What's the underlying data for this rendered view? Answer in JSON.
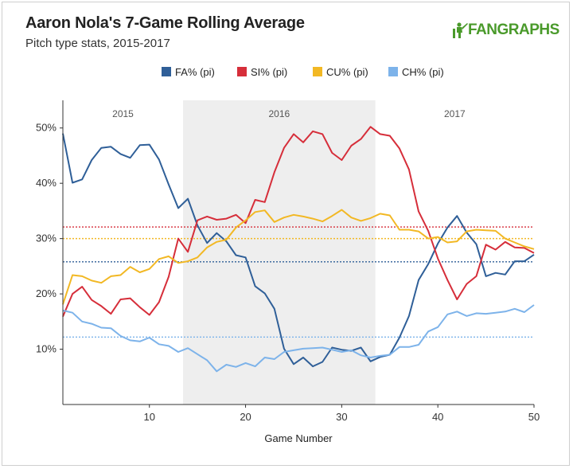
{
  "header": {
    "title": "Aaron Nola's 7-Game Rolling Average",
    "subtitle": "Pitch type stats, 2015-2017",
    "brand": "FANGRAPHS"
  },
  "colors": {
    "FA": "#2f5f98",
    "SI": "#d62e3a",
    "CU": "#f2b824",
    "CH": "#7db3ea",
    "band": "#eeeeee",
    "brand": "#4a9a2b"
  },
  "chart_data": {
    "type": "line",
    "title": "Aaron Nola's 7-Game Rolling Average",
    "subtitle": "Pitch type stats, 2015-2017",
    "xlabel": "Game Number",
    "ylabel": "",
    "xlim": [
      1,
      50
    ],
    "ylim": [
      0,
      55
    ],
    "xticks": [
      10,
      20,
      30,
      40,
      50
    ],
    "yticks": [
      10,
      20,
      30,
      40,
      50
    ],
    "ytick_labels": [
      "10%",
      "20%",
      "30%",
      "40%",
      "50%"
    ],
    "grid": false,
    "legend_position": "top-center",
    "seasons": [
      {
        "label": "2015",
        "start": 1,
        "end": 13.5
      },
      {
        "label": "2016",
        "start": 13.5,
        "end": 33.5
      },
      {
        "label": "2017",
        "start": 33.5,
        "end": 50
      }
    ],
    "averages": [
      {
        "series": "FA% (pi)",
        "value": 25.8
      },
      {
        "series": "SI% (pi)",
        "value": 32.1
      },
      {
        "series": "CU% (pi)",
        "value": 30.0
      },
      {
        "series": "CH% (pi)",
        "value": 12.2
      }
    ],
    "x": [
      1,
      2,
      3,
      4,
      5,
      6,
      7,
      8,
      9,
      10,
      11,
      12,
      13,
      14,
      15,
      16,
      17,
      18,
      19,
      20,
      21,
      22,
      23,
      24,
      25,
      26,
      27,
      28,
      29,
      30,
      31,
      32,
      33,
      34,
      35,
      36,
      37,
      38,
      39,
      40,
      41,
      42,
      43,
      44,
      45,
      46,
      47,
      48,
      49,
      50
    ],
    "series": [
      {
        "name": "FA% (pi)",
        "key": "FA",
        "values": [
          49.0,
          40.1,
          40.7,
          44.2,
          46.4,
          46.6,
          45.3,
          44.6,
          46.9,
          47.0,
          44.3,
          39.8,
          35.5,
          37.2,
          32.4,
          29.2,
          31.0,
          29.5,
          27.0,
          26.6,
          21.4,
          20.1,
          17.3,
          10.1,
          7.3,
          8.5,
          6.9,
          7.7,
          10.3,
          9.9,
          9.7,
          10.3,
          7.8,
          8.6,
          9.0,
          12.1,
          16.0,
          22.5,
          25.4,
          29.1,
          32.0,
          34.1,
          31.1,
          29.0,
          23.2,
          23.8,
          23.5,
          25.9,
          25.9,
          27.1
        ]
      },
      {
        "name": "SI% (pi)",
        "key": "SI",
        "values": [
          15.9,
          20.0,
          21.3,
          18.9,
          17.8,
          16.4,
          19.0,
          19.2,
          17.6,
          16.2,
          18.5,
          23.1,
          30.0,
          27.6,
          33.3,
          34.0,
          33.4,
          33.6,
          34.3,
          32.8,
          37.0,
          36.6,
          42.0,
          46.4,
          48.9,
          47.4,
          49.4,
          48.9,
          45.5,
          44.2,
          46.8,
          48.0,
          50.2,
          48.9,
          48.6,
          46.3,
          42.5,
          34.9,
          31.4,
          26.4,
          22.5,
          19.0,
          21.8,
          23.2,
          28.9,
          28.0,
          29.4,
          28.4,
          28.3,
          27.4
        ]
      },
      {
        "name": "CU% (pi)",
        "key": "CU",
        "values": [
          18.1,
          23.4,
          23.2,
          22.4,
          22.0,
          23.2,
          23.4,
          24.9,
          23.9,
          24.5,
          26.3,
          26.8,
          25.6,
          25.9,
          26.6,
          28.4,
          29.4,
          29.8,
          32.0,
          33.3,
          34.8,
          35.1,
          33.0,
          33.8,
          34.3,
          34.0,
          33.6,
          33.1,
          34.1,
          35.2,
          33.8,
          33.2,
          33.7,
          34.5,
          34.2,
          31.6,
          31.6,
          31.3,
          30.0,
          30.3,
          29.3,
          29.5,
          31.3,
          31.6,
          31.5,
          31.4,
          30.0,
          29.3,
          28.6,
          28.1
        ]
      },
      {
        "name": "CH% (pi)",
        "key": "CH",
        "values": [
          17.0,
          16.6,
          15.0,
          14.6,
          13.9,
          13.8,
          12.4,
          11.6,
          11.4,
          12.1,
          10.9,
          10.6,
          9.5,
          10.2,
          9.1,
          8.0,
          6.0,
          7.2,
          6.8,
          7.5,
          6.9,
          8.5,
          8.2,
          9.5,
          9.8,
          10.1,
          10.2,
          10.3,
          9.9,
          9.5,
          9.8,
          8.9,
          8.5,
          8.8,
          9.0,
          10.4,
          10.4,
          10.8,
          13.2,
          14.0,
          16.3,
          16.8,
          16.0,
          16.5,
          16.4,
          16.6,
          16.8,
          17.3,
          16.7,
          18.0
        ]
      }
    ]
  }
}
